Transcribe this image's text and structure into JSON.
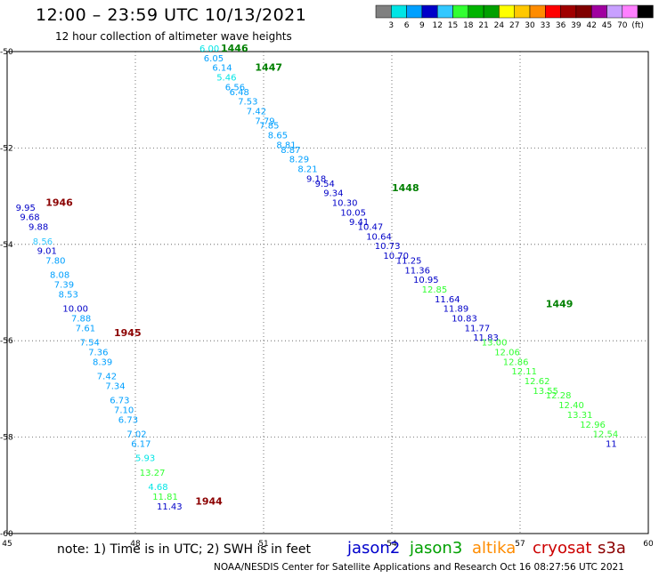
{
  "header": {
    "title": "12:00 – 23:59 UTC 10/13/2021",
    "subtitle": "12 hour collection of altimeter wave heights"
  },
  "legend_scale": {
    "labels": [
      "3",
      "6",
      "9",
      "12",
      "15",
      "18",
      "21",
      "24",
      "27",
      "30",
      "33",
      "36",
      "39",
      "42",
      "45",
      "70",
      "(ft)"
    ],
    "colors": [
      "#808080",
      "#00e5e5",
      "#00a0ff",
      "#0000c8",
      "#32c8ff",
      "#32ff32",
      "#00b400",
      "#00a000",
      "#ffff00",
      "#ffc800",
      "#ff8c00",
      "#ff0000",
      "#a00000",
      "#800000",
      "#a000a0",
      "#c8a0ff",
      "#ff80ff",
      "#000000"
    ]
  },
  "footer": {
    "note": "note: 1) Time is in UTC; 2) SWH is in feet",
    "credit": "NOAA/NESDIS Center for Satellite Applications and Research    Oct 16 08:27:56 UTC 2021"
  },
  "satellites": [
    {
      "key": "jason2",
      "label": "jason2",
      "color": "#0000cc"
    },
    {
      "key": "jason3",
      "label": "jason3",
      "color": "#00a000"
    },
    {
      "key": "altika",
      "label": "altika",
      "color": "#ff8c00"
    },
    {
      "key": "cryosat",
      "label": "cryosat",
      "color": "#cc0000"
    },
    {
      "key": "s3a",
      "label": "s3a",
      "color": "#8b0000"
    }
  ],
  "chart_data": {
    "type": "scatter",
    "title": "12:00 – 23:59 UTC 10/13/2021",
    "subtitle": "12 hour collection of altimeter wave heights",
    "xlim": [
      45,
      60
    ],
    "ylim": [
      -60,
      -50
    ],
    "x_ticks": [
      45,
      48,
      51,
      54,
      57,
      60
    ],
    "y_ticks": [
      -50,
      -52,
      -54,
      -56,
      -58,
      -60
    ],
    "grid": true,
    "passes": [
      {
        "label": "1944",
        "label_color": "#8b0000",
        "label_x": 49.4,
        "label_y": -59.4
      },
      {
        "label": "1945",
        "label_color": "#8b0000",
        "label_x": 47.5,
        "label_y": -55.9
      },
      {
        "label": "1946",
        "label_color": "#8b0000",
        "label_x": 45.9,
        "label_y": -53.2
      },
      {
        "label": "1446",
        "label_color": "#008000",
        "label_x": 50.0,
        "label_y": -50.0
      },
      {
        "label": "1447",
        "label_color": "#008000",
        "label_x": 50.8,
        "label_y": -50.4
      },
      {
        "label": "1448",
        "label_color": "#008000",
        "label_x": 54.0,
        "label_y": -52.9
      },
      {
        "label": "1449",
        "label_color": "#008000",
        "label_x": 57.6,
        "label_y": -55.3
      }
    ],
    "points": [
      {
        "x": 45.2,
        "y": -53.3,
        "v": "9.95",
        "c": "#0000c8"
      },
      {
        "x": 45.3,
        "y": -53.5,
        "v": "9.68",
        "c": "#0000c8"
      },
      {
        "x": 45.5,
        "y": -53.7,
        "v": "9.88",
        "c": "#0000c8"
      },
      {
        "x": 45.6,
        "y": -54.0,
        "v": "8.56",
        "c": "#32c8ff"
      },
      {
        "x": 45.7,
        "y": -54.2,
        "v": "9.01",
        "c": "#0000c8"
      },
      {
        "x": 45.9,
        "y": -54.4,
        "v": "7.80",
        "c": "#00a0ff"
      },
      {
        "x": 46.0,
        "y": -54.7,
        "v": "8.08",
        "c": "#00a0ff"
      },
      {
        "x": 46.1,
        "y": -54.9,
        "v": "7.39",
        "c": "#00a0ff"
      },
      {
        "x": 46.2,
        "y": -55.1,
        "v": "8.53",
        "c": "#00a0ff"
      },
      {
        "x": 46.3,
        "y": -55.4,
        "v": "10.00",
        "c": "#0000c8"
      },
      {
        "x": 46.5,
        "y": -55.6,
        "v": "7.88",
        "c": "#00a0ff"
      },
      {
        "x": 46.6,
        "y": -55.8,
        "v": "7.61",
        "c": "#00a0ff"
      },
      {
        "x": 46.7,
        "y": -56.1,
        "v": "7.54",
        "c": "#00a0ff"
      },
      {
        "x": 46.9,
        "y": -56.3,
        "v": "7.36",
        "c": "#00a0ff"
      },
      {
        "x": 47.0,
        "y": -56.5,
        "v": "8.39",
        "c": "#00a0ff"
      },
      {
        "x": 47.1,
        "y": -56.8,
        "v": "7.42",
        "c": "#00a0ff"
      },
      {
        "x": 47.3,
        "y": -57.0,
        "v": "7.34",
        "c": "#00a0ff"
      },
      {
        "x": 47.4,
        "y": -57.3,
        "v": "6.73",
        "c": "#00a0ff"
      },
      {
        "x": 47.5,
        "y": -57.5,
        "v": "7.10",
        "c": "#00a0ff"
      },
      {
        "x": 47.6,
        "y": -57.7,
        "v": "6.73",
        "c": "#00a0ff"
      },
      {
        "x": 47.8,
        "y": -58.0,
        "v": "7.02",
        "c": "#00a0ff"
      },
      {
        "x": 47.9,
        "y": -58.2,
        "v": "6.17",
        "c": "#00a0ff"
      },
      {
        "x": 48.0,
        "y": -58.5,
        "v": "5.93",
        "c": "#00e5e5"
      },
      {
        "x": 48.1,
        "y": -58.8,
        "v": "13.27",
        "c": "#32ff32"
      },
      {
        "x": 48.3,
        "y": -59.1,
        "v": "4.68",
        "c": "#00e5e5"
      },
      {
        "x": 48.4,
        "y": -59.3,
        "v": "11.81",
        "c": "#32ff32"
      },
      {
        "x": 48.5,
        "y": -59.5,
        "v": "11.43",
        "c": "#0000c8"
      },
      {
        "x": 49.5,
        "y": -50.0,
        "v": "6.00",
        "c": "#00e5e5"
      },
      {
        "x": 49.6,
        "y": -50.2,
        "v": "6.05",
        "c": "#00a0ff"
      },
      {
        "x": 49.8,
        "y": -50.4,
        "v": "6.14",
        "c": "#00a0ff"
      },
      {
        "x": 49.9,
        "y": -50.6,
        "v": "5.46",
        "c": "#00e5e5"
      },
      {
        "x": 50.1,
        "y": -50.8,
        "v": "6.56",
        "c": "#00a0ff"
      },
      {
        "x": 50.2,
        "y": -50.9,
        "v": "6.48",
        "c": "#00a0ff"
      },
      {
        "x": 50.4,
        "y": -51.1,
        "v": "7.53",
        "c": "#00a0ff"
      },
      {
        "x": 50.6,
        "y": -51.3,
        "v": "7.42",
        "c": "#00a0ff"
      },
      {
        "x": 50.8,
        "y": -51.5,
        "v": "7.79",
        "c": "#00a0ff"
      },
      {
        "x": 50.9,
        "y": -51.6,
        "v": "7.85",
        "c": "#00a0ff"
      },
      {
        "x": 51.1,
        "y": -51.8,
        "v": "8.65",
        "c": "#00a0ff"
      },
      {
        "x": 51.3,
        "y": -52.0,
        "v": "8.81",
        "c": "#00a0ff"
      },
      {
        "x": 51.4,
        "y": -52.1,
        "v": "8.87",
        "c": "#00a0ff"
      },
      {
        "x": 51.6,
        "y": -52.3,
        "v": "8.29",
        "c": "#00a0ff"
      },
      {
        "x": 51.8,
        "y": -52.5,
        "v": "8.21",
        "c": "#00a0ff"
      },
      {
        "x": 52.0,
        "y": -52.7,
        "v": "9.18",
        "c": "#0000c8"
      },
      {
        "x": 52.2,
        "y": -52.8,
        "v": "9.54",
        "c": "#0000c8"
      },
      {
        "x": 52.4,
        "y": -53.0,
        "v": "9.34",
        "c": "#0000c8"
      },
      {
        "x": 52.6,
        "y": -53.2,
        "v": "10.30",
        "c": "#0000c8"
      },
      {
        "x": 52.8,
        "y": -53.4,
        "v": "10.05",
        "c": "#0000c8"
      },
      {
        "x": 53.0,
        "y": -53.6,
        "v": "9.41",
        "c": "#0000c8"
      },
      {
        "x": 53.2,
        "y": -53.7,
        "v": "10.47",
        "c": "#0000c8"
      },
      {
        "x": 53.4,
        "y": -53.9,
        "v": "10.64",
        "c": "#0000c8"
      },
      {
        "x": 53.6,
        "y": -54.1,
        "v": "10.73",
        "c": "#0000c8"
      },
      {
        "x": 53.8,
        "y": -54.3,
        "v": "10.70",
        "c": "#0000c8"
      },
      {
        "x": 54.1,
        "y": -54.4,
        "v": "11.25",
        "c": "#0000c8"
      },
      {
        "x": 54.3,
        "y": -54.6,
        "v": "11.36",
        "c": "#0000c8"
      },
      {
        "x": 54.5,
        "y": -54.8,
        "v": "10.95",
        "c": "#0000c8"
      },
      {
        "x": 54.7,
        "y": -55.0,
        "v": "12.85",
        "c": "#32ff32"
      },
      {
        "x": 55.0,
        "y": -55.2,
        "v": "11.64",
        "c": "#0000c8"
      },
      {
        "x": 55.2,
        "y": -55.4,
        "v": "11.89",
        "c": "#0000c8"
      },
      {
        "x": 55.4,
        "y": -55.6,
        "v": "10.83",
        "c": "#0000c8"
      },
      {
        "x": 55.7,
        "y": -55.8,
        "v": "11.77",
        "c": "#0000c8"
      },
      {
        "x": 55.9,
        "y": -56.0,
        "v": "11.83",
        "c": "#0000c8"
      },
      {
        "x": 56.1,
        "y": -56.1,
        "v": "13.00",
        "c": "#32ff32"
      },
      {
        "x": 56.4,
        "y": -56.3,
        "v": "12.06",
        "c": "#32ff32"
      },
      {
        "x": 56.6,
        "y": -56.5,
        "v": "12.86",
        "c": "#32ff32"
      },
      {
        "x": 56.8,
        "y": -56.7,
        "v": "12.11",
        "c": "#32ff32"
      },
      {
        "x": 57.1,
        "y": -56.9,
        "v": "12.62",
        "c": "#32ff32"
      },
      {
        "x": 57.3,
        "y": -57.1,
        "v": "13.55",
        "c": "#32ff32"
      },
      {
        "x": 57.6,
        "y": -57.2,
        "v": "12.28",
        "c": "#32ff32"
      },
      {
        "x": 57.9,
        "y": -57.4,
        "v": "12.40",
        "c": "#32ff32"
      },
      {
        "x": 58.1,
        "y": -57.6,
        "v": "13.31",
        "c": "#32ff32"
      },
      {
        "x": 58.4,
        "y": -57.8,
        "v": "12.96",
        "c": "#32ff32"
      },
      {
        "x": 58.7,
        "y": -58.0,
        "v": "12.54",
        "c": "#32ff32"
      },
      {
        "x": 59.0,
        "y": -58.2,
        "v": "11",
        "c": "#0000c8"
      }
    ]
  }
}
